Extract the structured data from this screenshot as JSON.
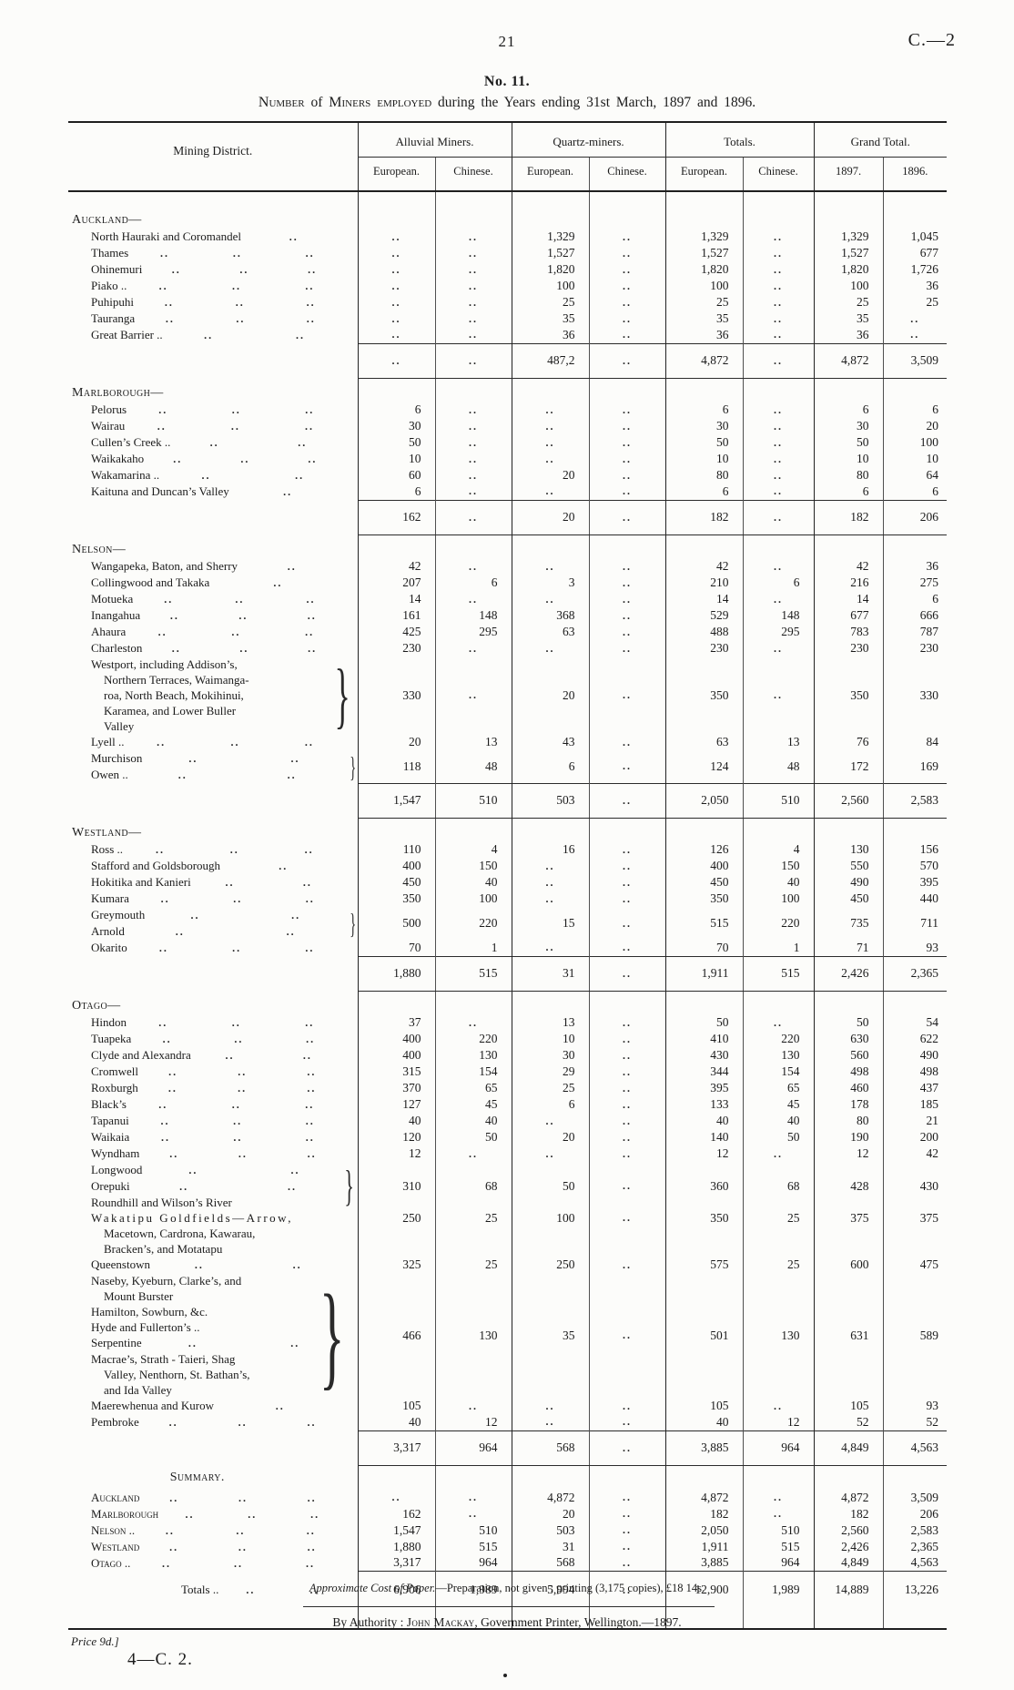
{
  "page": {
    "page_number": "21",
    "doc_ref": "C.—2",
    "table_no": "No. 11."
  },
  "title_segments": [
    {
      "t": "Number",
      "sc": 1
    },
    {
      "t": " of ",
      "sc": 0
    },
    {
      "t": "Miners employed",
      "sc": 1
    },
    {
      "t": " during the Years ending 31st March, 1897 and 1896.",
      "sc": 0
    }
  ],
  "table": {
    "district_header": "Mining District.",
    "groups": [
      "Alluvial Miners.",
      "Quartz-miners.",
      "Totals.",
      "Grand Total."
    ],
    "subheaders": [
      "European.",
      "Chinese.",
      "European.",
      "Chinese.",
      "European.",
      "Chinese.",
      "1897.",
      "1896."
    ],
    "rows": [
      {
        "type": "spacer",
        "h": 14
      },
      {
        "type": "group",
        "label": "Auckland—"
      },
      {
        "type": "item",
        "lines": [
          {
            "t": "North Hauraki and Coromandel",
            "dots": 1
          }
        ],
        "cells": [
          "..",
          "..",
          "1,329",
          "..",
          "1,329",
          "..",
          "1,329",
          "1,045"
        ]
      },
      {
        "type": "item",
        "lines": [
          {
            "t": "Thames",
            "dots": 3
          }
        ],
        "cells": [
          "..",
          "..",
          "1,527",
          "..",
          "1,527",
          "..",
          "1,527",
          "677"
        ]
      },
      {
        "type": "item",
        "lines": [
          {
            "t": "Ohinemuri",
            "dots": 3
          }
        ],
        "cells": [
          "..",
          "..",
          "1,820",
          "..",
          "1,820",
          "..",
          "1,820",
          "1,726"
        ]
      },
      {
        "type": "item",
        "lines": [
          {
            "t": "Piako ..",
            "dots": 3
          }
        ],
        "cells": [
          "..",
          "..",
          "100",
          "..",
          "100",
          "..",
          "100",
          "36"
        ]
      },
      {
        "type": "item",
        "lines": [
          {
            "t": "Puhipuhi",
            "dots": 3
          }
        ],
        "cells": [
          "..",
          "..",
          "25",
          "..",
          "25",
          "..",
          "25",
          "25"
        ]
      },
      {
        "type": "item",
        "lines": [
          {
            "t": "Tauranga",
            "dots": 3
          }
        ],
        "cells": [
          "..",
          "..",
          "35",
          "..",
          "35",
          "..",
          "35",
          ".."
        ]
      },
      {
        "type": "item",
        "lines": [
          {
            "t": "Great Barrier ..",
            "dots": 2
          }
        ],
        "cells": [
          "..",
          "..",
          "36",
          "..",
          "36",
          "..",
          "36",
          ".."
        ]
      },
      {
        "type": "subtotal",
        "cells": [
          "..",
          "..",
          "487,2",
          "..",
          "4,872",
          "..",
          "4,872",
          "3,509"
        ]
      },
      {
        "type": "group",
        "label": "Marlborough—"
      },
      {
        "type": "item",
        "lines": [
          {
            "t": "Pelorus",
            "dots": 3
          }
        ],
        "cells": [
          "6",
          "..",
          "..",
          "..",
          "6",
          "..",
          "6",
          "6"
        ]
      },
      {
        "type": "item",
        "lines": [
          {
            "t": "Wairau",
            "dots": 3
          }
        ],
        "cells": [
          "30",
          "..",
          "..",
          "..",
          "30",
          "..",
          "30",
          "20"
        ]
      },
      {
        "type": "item",
        "lines": [
          {
            "t": "Cullen’s Creek ..",
            "dots": 2
          }
        ],
        "cells": [
          "50",
          "..",
          "..",
          "..",
          "50",
          "..",
          "50",
          "100"
        ]
      },
      {
        "type": "item",
        "lines": [
          {
            "t": "Waikakaho",
            "dots": 3
          }
        ],
        "cells": [
          "10",
          "..",
          "..",
          "..",
          "10",
          "..",
          "10",
          "10"
        ]
      },
      {
        "type": "item",
        "lines": [
          {
            "t": "Wakamarina ..",
            "dots": 2
          }
        ],
        "cells": [
          "60",
          "..",
          "20",
          "..",
          "80",
          "..",
          "80",
          "64"
        ]
      },
      {
        "type": "item",
        "lines": [
          {
            "t": "Kaituna and Duncan’s Valley",
            "dots": 1
          }
        ],
        "cells": [
          "6",
          "..",
          "..",
          "..",
          "6",
          "..",
          "6",
          "6"
        ]
      },
      {
        "type": "subtotal",
        "cells": [
          "162",
          "..",
          "20",
          "..",
          "182",
          "..",
          "182",
          "206"
        ]
      },
      {
        "type": "group",
        "label": "Nelson—"
      },
      {
        "type": "item",
        "lines": [
          {
            "t": "Wangapeka, Baton, and Sherry",
            "dots": 1
          }
        ],
        "cells": [
          "42",
          "..",
          "..",
          "..",
          "42",
          "..",
          "42",
          "36"
        ]
      },
      {
        "type": "item",
        "lines": [
          {
            "t": "Collingwood and Takaka",
            "dots": 1
          }
        ],
        "cells": [
          "207",
          "6",
          "3",
          "..",
          "210",
          "6",
          "216",
          "275"
        ]
      },
      {
        "type": "item",
        "lines": [
          {
            "t": "Motueka",
            "dots": 3
          }
        ],
        "cells": [
          "14",
          "..",
          "..",
          "..",
          "14",
          "..",
          "14",
          "6"
        ]
      },
      {
        "type": "item",
        "lines": [
          {
            "t": "Inangahua",
            "dots": 3
          }
        ],
        "cells": [
          "161",
          "148",
          "368",
          "..",
          "529",
          "148",
          "677",
          "666"
        ]
      },
      {
        "type": "item",
        "lines": [
          {
            "t": "Ahaura",
            "dots": 3
          }
        ],
        "cells": [
          "425",
          "295",
          "63",
          "..",
          "488",
          "295",
          "783",
          "787"
        ]
      },
      {
        "type": "item",
        "lines": [
          {
            "t": "Charleston",
            "dots": 3
          }
        ],
        "cells": [
          "230",
          "..",
          "..",
          "..",
          "230",
          "..",
          "230",
          "230"
        ]
      },
      {
        "type": "item",
        "brace": true,
        "lines": [
          {
            "t": "Westport, including Addison’s,"
          },
          {
            "t": "Northern Terraces, Waimanga-",
            "ind": 1
          },
          {
            "t": "roa, North Beach, Mokihinui,",
            "ind": 1
          },
          {
            "t": "Karamea, and Lower Buller",
            "ind": 1
          },
          {
            "t": "Valley",
            "ind": 1
          }
        ],
        "cells": [
          "330",
          "..",
          "20",
          "..",
          "350",
          "..",
          "350",
          "330"
        ]
      },
      {
        "type": "item",
        "lines": [
          {
            "t": "Lyell ..",
            "dots": 3
          }
        ],
        "cells": [
          "20",
          "13",
          "43",
          "..",
          "63",
          "13",
          "76",
          "84"
        ]
      },
      {
        "type": "item",
        "brace": true,
        "lines": [
          {
            "t": "Murchison",
            "dots": 2
          },
          {
            "t": "Owen ..",
            "dots": 2
          }
        ],
        "cells": [
          "118",
          "48",
          "6",
          "..",
          "124",
          "48",
          "172",
          "169"
        ]
      },
      {
        "type": "subtotal",
        "cells": [
          "1,547",
          "510",
          "503",
          "..",
          "2,050",
          "510",
          "2,560",
          "2,583"
        ]
      },
      {
        "type": "group",
        "label": "Westland—"
      },
      {
        "type": "item",
        "lines": [
          {
            "t": "Ross ..",
            "dots": 3
          }
        ],
        "cells": [
          "110",
          "4",
          "16",
          "..",
          "126",
          "4",
          "130",
          "156"
        ]
      },
      {
        "type": "item",
        "lines": [
          {
            "t": "Stafford and Goldsborough",
            "dots": 1
          }
        ],
        "cells": [
          "400",
          "150",
          "..",
          "..",
          "400",
          "150",
          "550",
          "570"
        ]
      },
      {
        "type": "item",
        "lines": [
          {
            "t": "Hokitika and Kanieri",
            "dots": 2
          }
        ],
        "cells": [
          "450",
          "40",
          "..",
          "..",
          "450",
          "40",
          "490",
          "395"
        ]
      },
      {
        "type": "item",
        "lines": [
          {
            "t": "Kumara",
            "dots": 3
          }
        ],
        "cells": [
          "350",
          "100",
          "..",
          "..",
          "350",
          "100",
          "450",
          "440"
        ]
      },
      {
        "type": "item",
        "brace": true,
        "lines": [
          {
            "t": "Greymouth",
            "dots": 2
          },
          {
            "t": "Arnold",
            "dots": 2
          }
        ],
        "cells": [
          "500",
          "220",
          "15",
          "..",
          "515",
          "220",
          "735",
          "711"
        ]
      },
      {
        "type": "item",
        "lines": [
          {
            "t": "Okarito",
            "dots": 3
          }
        ],
        "cells": [
          "70",
          "1",
          "..",
          "..",
          "70",
          "1",
          "71",
          "93"
        ]
      },
      {
        "type": "subtotal",
        "cells": [
          "1,880",
          "515",
          "31",
          "..",
          "1,911",
          "515",
          "2,426",
          "2,365"
        ]
      },
      {
        "type": "group",
        "label": "Otago—"
      },
      {
        "type": "item",
        "lines": [
          {
            "t": "Hindon",
            "dots": 3
          }
        ],
        "cells": [
          "37",
          "..",
          "13",
          "..",
          "50",
          "..",
          "50",
          "54"
        ]
      },
      {
        "type": "item",
        "lines": [
          {
            "t": "Tuapeka",
            "dots": 3
          }
        ],
        "cells": [
          "400",
          "220",
          "10",
          "..",
          "410",
          "220",
          "630",
          "622"
        ]
      },
      {
        "type": "item",
        "lines": [
          {
            "t": "Clyde and Alexandra",
            "dots": 2
          }
        ],
        "cells": [
          "400",
          "130",
          "30",
          "..",
          "430",
          "130",
          "560",
          "490"
        ]
      },
      {
        "type": "item",
        "lines": [
          {
            "t": "Cromwell",
            "dots": 3
          }
        ],
        "cells": [
          "315",
          "154",
          "29",
          "..",
          "344",
          "154",
          "498",
          "498"
        ]
      },
      {
        "type": "item",
        "lines": [
          {
            "t": "Roxburgh",
            "dots": 3
          }
        ],
        "cells": [
          "370",
          "65",
          "25",
          "..",
          "395",
          "65",
          "460",
          "437"
        ]
      },
      {
        "type": "item",
        "lines": [
          {
            "t": "Black’s",
            "dots": 3
          }
        ],
        "cells": [
          "127",
          "45",
          "6",
          "..",
          "133",
          "45",
          "178",
          "185"
        ]
      },
      {
        "type": "item",
        "lines": [
          {
            "t": "Tapanui",
            "dots": 3
          }
        ],
        "cells": [
          "40",
          "40",
          "..",
          "..",
          "40",
          "40",
          "80",
          "21"
        ]
      },
      {
        "type": "item",
        "lines": [
          {
            "t": "Waikaia",
            "dots": 3
          }
        ],
        "cells": [
          "120",
          "50",
          "20",
          "..",
          "140",
          "50",
          "190",
          "200"
        ]
      },
      {
        "type": "item",
        "lines": [
          {
            "t": "Wyndham",
            "dots": 3
          }
        ],
        "cells": [
          "12",
          "..",
          "..",
          "..",
          "12",
          "..",
          "12",
          "42"
        ]
      },
      {
        "type": "item",
        "brace": true,
        "lines": [
          {
            "t": "Longwood",
            "dots": 2
          },
          {
            "t": "Orepuki",
            "dots": 2
          },
          {
            "t": "Roundhill and Wilson’s River"
          }
        ],
        "cells": [
          "310",
          "68",
          "50",
          "..",
          "360",
          "68",
          "428",
          "430"
        ]
      },
      {
        "type": "item",
        "valign": "top",
        "lines": [
          {
            "t": "Wakatipu Goldfields—Arrow,",
            "ls": 1
          },
          {
            "t": "Macetown, Cardrona, Kawarau,",
            "ind": 1
          },
          {
            "t": "Bracken’s, and Motatapu",
            "ind": 1
          }
        ],
        "cells": [
          "250",
          "25",
          "100",
          "..",
          "350",
          "25",
          "375",
          "375"
        ]
      },
      {
        "type": "item",
        "lines": [
          {
            "t": "Queenstown",
            "dots": 2
          }
        ],
        "cells": [
          "325",
          "25",
          "250",
          "..",
          "575",
          "25",
          "600",
          "475"
        ]
      },
      {
        "type": "item",
        "brace": true,
        "lines": [
          {
            "t": "Naseby, Kyeburn, Clarke’s, and"
          },
          {
            "t": "Mount Burster",
            "ind": 1
          },
          {
            "t": "Hamilton, Sowburn, &c."
          },
          {
            "t": "Hyde and Fullerton’s .."
          },
          {
            "t": "Serpentine",
            "dots": 2
          },
          {
            "t": "Macrae’s, Strath - Taieri, Shag"
          },
          {
            "t": "Valley, Nenthorn, St. Bathan’s,",
            "ind": 1
          },
          {
            "t": "and Ida Valley",
            "ind": 1
          }
        ],
        "cells": [
          "466",
          "130",
          "35",
          "..",
          "501",
          "130",
          "631",
          "589"
        ]
      },
      {
        "type": "item",
        "lines": [
          {
            "t": "Maerewhenua and Kurow",
            "dots": 1
          }
        ],
        "cells": [
          "105",
          "..",
          "..",
          "..",
          "105",
          "..",
          "105",
          "93"
        ]
      },
      {
        "type": "item",
        "lines": [
          {
            "t": "Pembroke",
            "dots": 3
          }
        ],
        "cells": [
          "40",
          "12",
          "..",
          "..",
          "40",
          "12",
          "52",
          "52"
        ]
      },
      {
        "type": "subtotal",
        "cells": [
          "3,317",
          "964",
          "568",
          "..",
          "3,885",
          "964",
          "4,849",
          "4,563"
        ]
      },
      {
        "type": "summary-title",
        "label": "Summary."
      },
      {
        "type": "item",
        "sc": true,
        "lines": [
          {
            "t": "Auckland",
            "dots": 3
          }
        ],
        "cells": [
          "..",
          "..",
          "4,872",
          "..",
          "4,872",
          "..",
          "4,872",
          "3,509"
        ]
      },
      {
        "type": "item",
        "sc": true,
        "lines": [
          {
            "t": "Marlborough",
            "dots": 3
          }
        ],
        "cells": [
          "162",
          "..",
          "20",
          "..",
          "182",
          "..",
          "182",
          "206"
        ]
      },
      {
        "type": "item",
        "sc": true,
        "lines": [
          {
            "t": "Nelson ..",
            "dots": 3
          }
        ],
        "cells": [
          "1,547",
          "510",
          "503",
          "..",
          "2,050",
          "510",
          "2,560",
          "2,583"
        ]
      },
      {
        "type": "item",
        "sc": true,
        "lines": [
          {
            "t": "Westland",
            "dots": 3
          }
        ],
        "cells": [
          "1,880",
          "515",
          "31",
          "..",
          "1,911",
          "515",
          "2,426",
          "2,365"
        ]
      },
      {
        "type": "item",
        "sc": true,
        "lines": [
          {
            "t": "Otago ..",
            "dots": 3
          }
        ],
        "cells": [
          "3,317",
          "964",
          "568",
          "..",
          "3,885",
          "964",
          "4,849",
          "4,563"
        ]
      },
      {
        "type": "totals",
        "label": "Totals ..",
        "dots": 2,
        "cells": [
          "6,906",
          "1,989",
          "5,994",
          "..",
          "12,900",
          "1,989",
          "14,889",
          "13,226"
        ]
      },
      {
        "type": "spacer",
        "h": 22
      }
    ]
  },
  "footer": {
    "cost_segments": [
      {
        "t": "Approximate Cost of Paper.",
        "it": 1
      },
      {
        "t": "—Preparation, not given ;  printing (3,175 copies), £18 14s.",
        "it": 0
      }
    ],
    "authority_segments": [
      {
        "t": "By Authority : ",
        "sc": 0
      },
      {
        "t": "John Mackay",
        "sc": 1
      },
      {
        "t": ", Government Printer, Wellington.—1897.",
        "sc": 0
      }
    ],
    "price": "Price 9d.]",
    "signature": "4—C. 2."
  }
}
